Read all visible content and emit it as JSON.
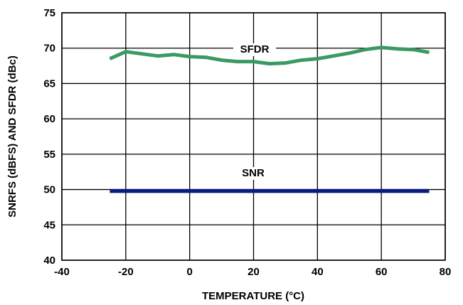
{
  "chart_data": {
    "type": "line",
    "xlabel": "TEMPERATURE (°C)",
    "ylabel": "SNRFS (dBFS) AND SFDR (dBc)",
    "xlim": [
      -40,
      80
    ],
    "ylim": [
      40,
      75
    ],
    "x_ticks": [
      -40,
      -20,
      0,
      20,
      40,
      60,
      80
    ],
    "y_ticks": [
      40,
      45,
      50,
      55,
      60,
      65,
      70,
      75
    ],
    "grid": true,
    "series": [
      {
        "name": "SFDR",
        "color": "#3a9a63",
        "x": [
          -25,
          -20,
          -15,
          -10,
          -5,
          0,
          5,
          10,
          15,
          20,
          25,
          30,
          35,
          40,
          45,
          50,
          55,
          60,
          65,
          70,
          75
        ],
        "y": [
          68.5,
          69.5,
          69.2,
          68.9,
          69.1,
          68.8,
          68.7,
          68.3,
          68.1,
          68.1,
          67.8,
          67.9,
          68.3,
          68.5,
          68.9,
          69.3,
          69.8,
          70.1,
          69.9,
          69.8,
          69.4
        ]
      },
      {
        "name": "SNR",
        "color": "#0a1a80",
        "x": [
          -25,
          75
        ],
        "y": [
          49.8,
          49.8
        ]
      }
    ]
  }
}
